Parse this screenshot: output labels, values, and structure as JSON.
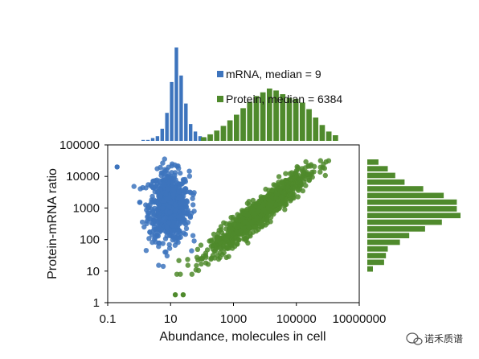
{
  "colors": {
    "mrna": "#3d74bd",
    "protein": "#4f8a2c",
    "axis": "#000000",
    "background": "#ffffff"
  },
  "watermark": {
    "icon": "wechat-icon",
    "text": "诺禾质谱"
  },
  "chart_data": {
    "type": "scatter",
    "xscale": "log",
    "yscale": "log",
    "xlim": [
      0.1,
      10000000
    ],
    "ylim": [
      1,
      100000
    ],
    "xlabel": "Abundance, molecules in cell",
    "ylabel": "Protein-mRNA ratio",
    "xticks": [
      {
        "value": 0.1,
        "label": "0.1"
      },
      {
        "value": 10,
        "label": "10"
      },
      {
        "value": 1000,
        "label": "1000"
      },
      {
        "value": 100000,
        "label": "100000"
      },
      {
        "value": 10000000,
        "label": "10000000"
      }
    ],
    "yticks": [
      {
        "value": 1,
        "label": "1"
      },
      {
        "value": 10,
        "label": "10"
      },
      {
        "value": 100,
        "label": "100"
      },
      {
        "value": 1000,
        "label": "1000"
      },
      {
        "value": 10000,
        "label": "10000"
      },
      {
        "value": 100000,
        "label": "100000"
      }
    ],
    "legend_position": "top",
    "series": [
      {
        "name": "mRNA, median = 9",
        "key": "mrna",
        "color": "#3d74bd",
        "median": 9,
        "x_log10_center": 0.95,
        "x_log10_sd": 0.32,
        "y_log10_center": 3.05,
        "y_log10_sd": 0.55,
        "n_points": 750
      },
      {
        "name": "Protein, median = 6384",
        "key": "protein",
        "color": "#4f8a2c",
        "median": 6384,
        "x_log10_center": 3.8,
        "x_log10_sd": 0.75,
        "y_log10_center": 2.85,
        "y_log10_sd": 0.52,
        "n_points": 1100
      }
    ],
    "top_histogram": {
      "mrna": [
        0.01,
        0.01,
        0.03,
        0.05,
        0.13,
        0.3,
        0.63,
        1.0,
        0.7,
        0.4,
        0.18,
        0.1,
        0.05,
        0.03
      ],
      "protein": [
        0.04,
        0.07,
        0.11,
        0.16,
        0.22,
        0.28,
        0.35,
        0.42,
        0.48,
        0.52,
        0.56,
        0.54,
        0.5,
        0.46,
        0.45,
        0.41,
        0.34,
        0.25,
        0.17,
        0.1,
        0.06
      ]
    },
    "right_histogram": [
      0.12,
      0.22,
      0.3,
      0.4,
      0.6,
      0.82,
      0.96,
      0.96,
      1.0,
      0.8,
      0.62,
      0.45,
      0.35,
      0.22,
      0.2,
      0.18,
      0.06
    ]
  }
}
